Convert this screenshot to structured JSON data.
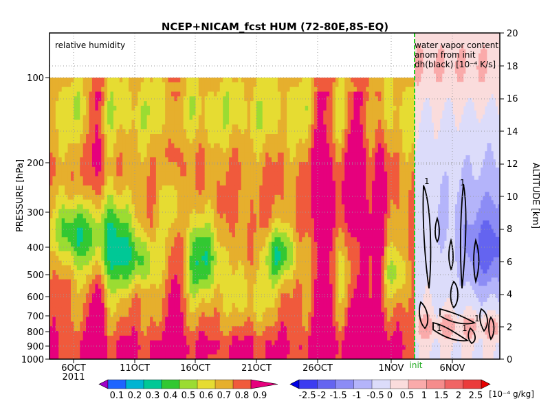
{
  "chart_data": {
    "type": "heatmap",
    "title": "NCEP+NICAM_fcst HUM (72-80E,8S-EQ)",
    "left_panel_label": "relative humidity",
    "right_panel_label_lines": [
      "water vapor content",
      "anom from init",
      "dh(black) [10⁻⁴ K/s]"
    ],
    "ylabel_left": "PRESSURE [hPa]",
    "ylabel_right": "ALTITUDE [km]",
    "y_ticks_pressure": [
      "100",
      "200",
      "300",
      "400",
      "500",
      "600",
      "700",
      "800",
      "900",
      "1000"
    ],
    "y_ticks_altitude": [
      "0",
      "2",
      "4",
      "6",
      "8",
      "10",
      "12",
      "14",
      "16",
      "18",
      "20"
    ],
    "x_ticks": [
      "6OCT",
      "11OCT",
      "16OCT",
      "21OCT",
      "26OCT",
      "1NOV",
      "6NOV"
    ],
    "x_year": "2011",
    "init_label": "init",
    "contour_label": "1",
    "colorbar_rh": {
      "labels": [
        "0.1",
        "0.2",
        "0.3",
        "0.4",
        "0.5",
        "0.6",
        "0.7",
        "0.8",
        "0.9"
      ],
      "colors": [
        "#a000c8",
        "#1e64ff",
        "#00b4d2",
        "#00c896",
        "#32c832",
        "#9bdc32",
        "#e6dc32",
        "#e6af2d",
        "#f05a3c",
        "#e6007d"
      ]
    },
    "colorbar_anom": {
      "labels": [
        "-2.5",
        "-2",
        "-1.5",
        "-1",
        "-0.5",
        "0",
        "0.5",
        "1",
        "1.5",
        "2",
        "2.5"
      ],
      "unit": "[10⁻⁴ g/kg]",
      "colors": [
        "#0000e6",
        "#3c3cf0",
        "#6464f0",
        "#8c8cf5",
        "#b4b4fa",
        "#dcdcfa",
        "#fadcdc",
        "#faaaaa",
        "#f58c8c",
        "#f06464",
        "#eb3c3c",
        "#e60000"
      ]
    }
  }
}
